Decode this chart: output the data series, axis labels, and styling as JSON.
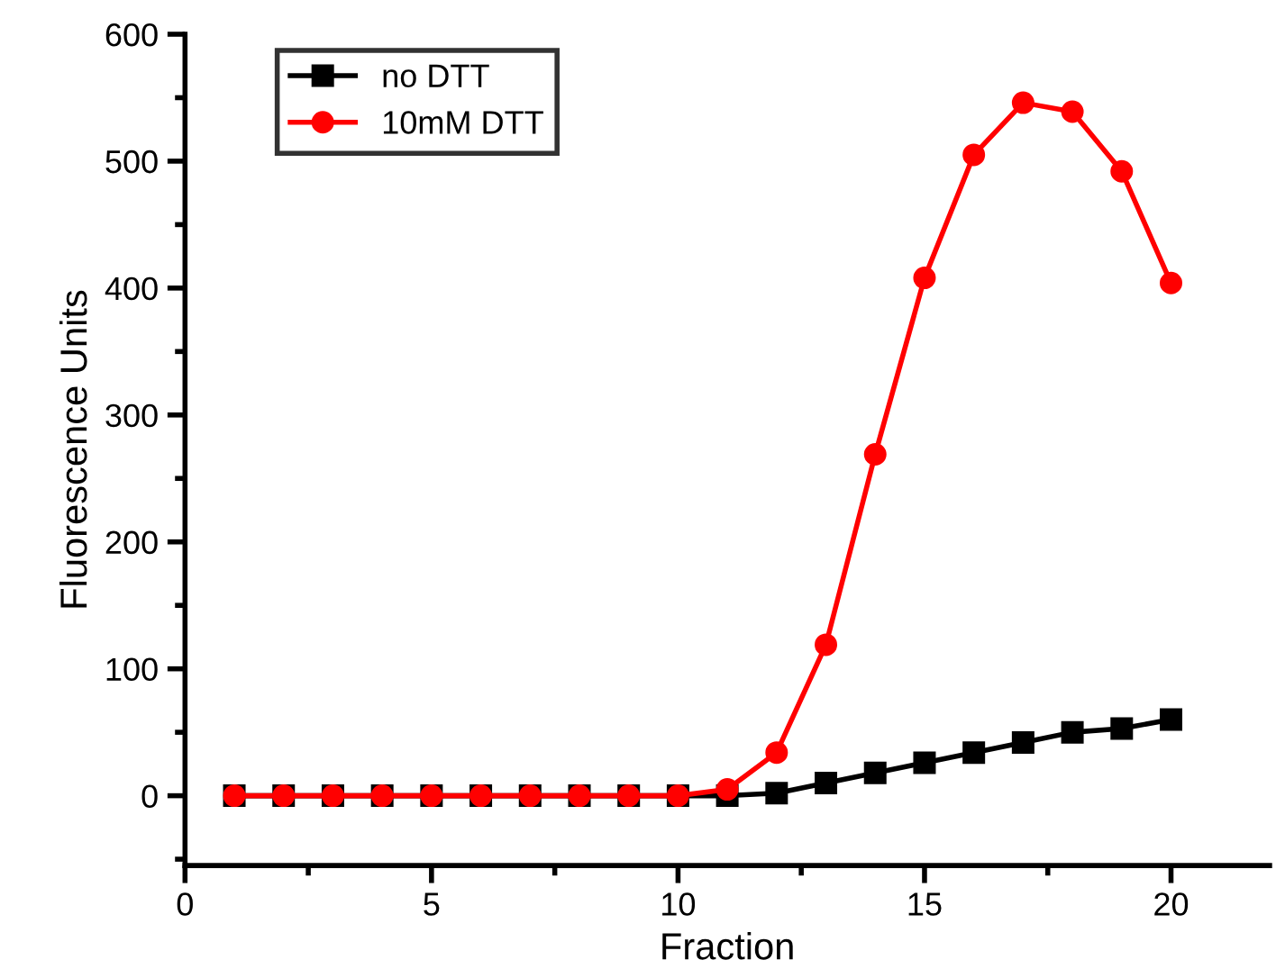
{
  "chart_data": {
    "type": "line",
    "xlabel": "Fraction",
    "ylabel": "Fluorescence Units",
    "x": [
      1,
      2,
      3,
      4,
      5,
      6,
      7,
      8,
      9,
      10,
      11,
      12,
      13,
      14,
      15,
      16,
      17,
      18,
      19,
      20
    ],
    "series": [
      {
        "name": "no DTT",
        "color": "#000000",
        "marker": "square",
        "values": [
          0,
          0,
          0,
          0,
          0,
          0,
          0,
          0,
          0,
          0,
          0,
          2,
          10,
          18,
          26,
          34,
          42,
          50,
          53,
          60
        ]
      },
      {
        "name": "10mM DTT",
        "color": "#ff0000",
        "marker": "circle",
        "values": [
          0,
          0,
          0,
          0,
          0,
          0,
          0,
          0,
          0,
          0,
          5,
          34,
          119,
          269,
          408,
          505,
          546,
          539,
          492,
          404
        ]
      }
    ],
    "xlim": [
      0,
      22
    ],
    "xticks": [
      0,
      5,
      10,
      15,
      20
    ],
    "ylim": [
      -55,
      600
    ],
    "yticks": [
      0,
      100,
      200,
      300,
      400,
      500,
      600
    ],
    "legend": "top left",
    "grid": false,
    "line_style": "solid"
  }
}
